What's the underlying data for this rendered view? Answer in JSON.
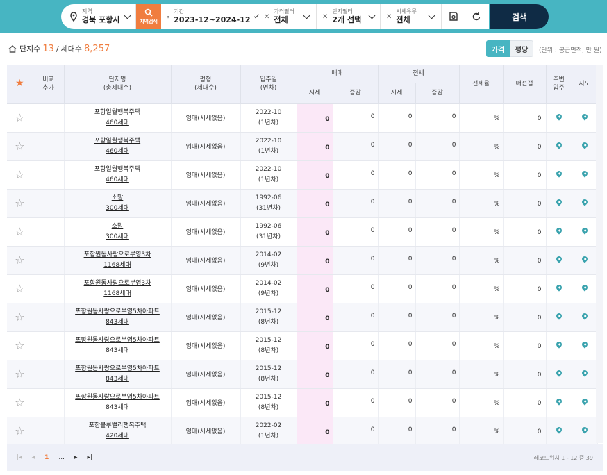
{
  "filters": {
    "region": {
      "label": "지역",
      "value": "경북 포항시"
    },
    "region_search_label": "지역검색",
    "period": {
      "label": "기간",
      "value": "2023-12~2024-12"
    },
    "price_filter": {
      "label": "가격필터",
      "value": "전체"
    },
    "complex_filter": {
      "label": "단지필터",
      "value": "2개 선택"
    },
    "price_exists": {
      "label": "시세유무",
      "value": "전체"
    },
    "search_label": "검색"
  },
  "summary": {
    "complex_label": "단지수",
    "complex_count": "13",
    "sep": "/",
    "household_label": "세대수",
    "household_count": "8,257"
  },
  "toggle": {
    "price": "가격",
    "pyeong": "평당"
  },
  "unit_note": "(단위 : 공급면적, 만 원)",
  "table": {
    "headers": {
      "compare": "비교\n추가",
      "name": "단지명\n(총세대수)",
      "type": "평형\n(세대수)",
      "move_in": "입주일\n(연차)",
      "sale": "매매",
      "jeonse": "전세",
      "price": "시세",
      "change": "증감",
      "jeonse_rate": "전세율",
      "gap": "매전갭",
      "nearby": "주변\n입주",
      "map": "지도"
    },
    "rows": [
      {
        "name": "포항일월행복주택",
        "households": "460세대",
        "type": "임대(시세없음)",
        "date": "2022-10",
        "age": "(1년차)",
        "sale_price": "0",
        "sale_change": "0",
        "jeonse_price": "0",
        "jeonse_change": "0",
        "rate": "%",
        "gap": "0"
      },
      {
        "name": "포항일월행복주택",
        "households": "460세대",
        "type": "임대(시세없음)",
        "date": "2022-10",
        "age": "(1년차)",
        "sale_price": "0",
        "sale_change": "0",
        "jeonse_price": "0",
        "jeonse_change": "0",
        "rate": "%",
        "gap": "0"
      },
      {
        "name": "포항일월행복주택",
        "households": "460세대",
        "type": "임대(시세없음)",
        "date": "2022-10",
        "age": "(1년차)",
        "sale_price": "0",
        "sale_change": "0",
        "jeonse_price": "0",
        "jeonse_change": "0",
        "rate": "%",
        "gap": "0"
      },
      {
        "name": "소망",
        "households": "300세대",
        "type": "임대(시세없음)",
        "date": "1992-06",
        "age": "(31년차)",
        "sale_price": "0",
        "sale_change": "0",
        "jeonse_price": "0",
        "jeonse_change": "0",
        "rate": "%",
        "gap": "0"
      },
      {
        "name": "소망",
        "households": "300세대",
        "type": "임대(시세없음)",
        "date": "1992-06",
        "age": "(31년차)",
        "sale_price": "0",
        "sale_change": "0",
        "jeonse_price": "0",
        "jeonse_change": "0",
        "rate": "%",
        "gap": "0"
      },
      {
        "name": "포항원동사랑으로부영3차",
        "households": "1168세대",
        "type": "임대(시세없음)",
        "date": "2014-02",
        "age": "(9년차)",
        "sale_price": "0",
        "sale_change": "0",
        "jeonse_price": "0",
        "jeonse_change": "0",
        "rate": "%",
        "gap": "0"
      },
      {
        "name": "포항원동사랑으로부영3차",
        "households": "1168세대",
        "type": "임대(시세없음)",
        "date": "2014-02",
        "age": "(9년차)",
        "sale_price": "0",
        "sale_change": "0",
        "jeonse_price": "0",
        "jeonse_change": "0",
        "rate": "%",
        "gap": "0"
      },
      {
        "name": "포항원동사랑으로부영5차아파트",
        "households": "843세대",
        "type": "임대(시세없음)",
        "date": "2015-12",
        "age": "(8년차)",
        "sale_price": "0",
        "sale_change": "0",
        "jeonse_price": "0",
        "jeonse_change": "0",
        "rate": "%",
        "gap": "0"
      },
      {
        "name": "포항원동사랑으로부영5차아파트",
        "households": "843세대",
        "type": "임대(시세없음)",
        "date": "2015-12",
        "age": "(8년차)",
        "sale_price": "0",
        "sale_change": "0",
        "jeonse_price": "0",
        "jeonse_change": "0",
        "rate": "%",
        "gap": "0"
      },
      {
        "name": "포항원동사랑으로부영5차아파트",
        "households": "843세대",
        "type": "임대(시세없음)",
        "date": "2015-12",
        "age": "(8년차)",
        "sale_price": "0",
        "sale_change": "0",
        "jeonse_price": "0",
        "jeonse_change": "0",
        "rate": "%",
        "gap": "0"
      },
      {
        "name": "포항원동사랑으로부영5차아파트",
        "households": "843세대",
        "type": "임대(시세없음)",
        "date": "2015-12",
        "age": "(8년차)",
        "sale_price": "0",
        "sale_change": "0",
        "jeonse_price": "0",
        "jeonse_change": "0",
        "rate": "%",
        "gap": "0"
      },
      {
        "name": "포항블루밸리행복주택",
        "households": "420세대",
        "type": "임대(시세없음)",
        "date": "2022-02",
        "age": "(1년차)",
        "sale_price": "0",
        "sale_change": "0",
        "jeonse_price": "0",
        "jeonse_change": "0",
        "rate": "%",
        "gap": "0"
      }
    ]
  },
  "pager": {
    "current": "1",
    "ellipsis": "...",
    "record_info": "레코드위치 1 - 12 중 39"
  },
  "colors": {
    "accent": "#47b5c2",
    "orange": "#f07d3f",
    "navy": "#0f2b45",
    "sale_highlight": "#fbe8f7"
  }
}
